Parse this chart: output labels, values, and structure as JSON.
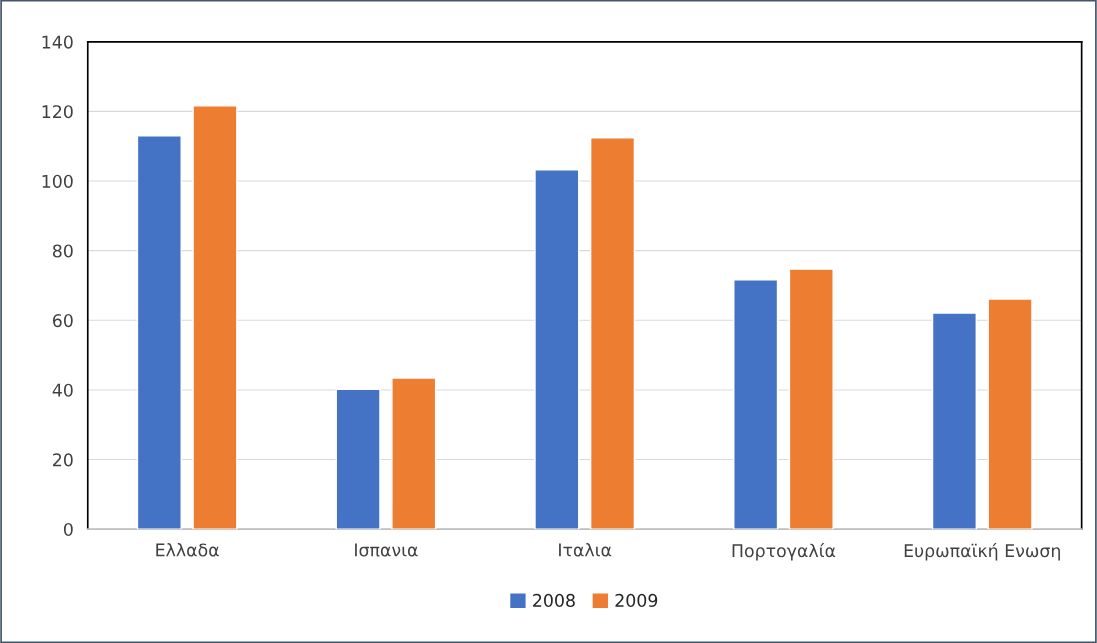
{
  "chart_data": {
    "type": "bar",
    "categories": [
      "Ελλαδα",
      "Ισπανια",
      "Ιταλια",
      "Πορτογαλία",
      "Ευρωπαϊκή Ενωση"
    ],
    "series": [
      {
        "name": "2008",
        "color": "#4472c4",
        "values": [
          113,
          40.2,
          103.2,
          71.6,
          62.1
        ]
      },
      {
        "name": "2009",
        "color": "#ed7d31",
        "values": [
          121.6,
          43.4,
          112.4,
          74.7,
          66.1
        ]
      }
    ],
    "ylim": [
      0,
      140
    ],
    "yticks": [
      0,
      20,
      40,
      60,
      80,
      100,
      120,
      140
    ],
    "grid": "y",
    "legend": "bottom"
  }
}
